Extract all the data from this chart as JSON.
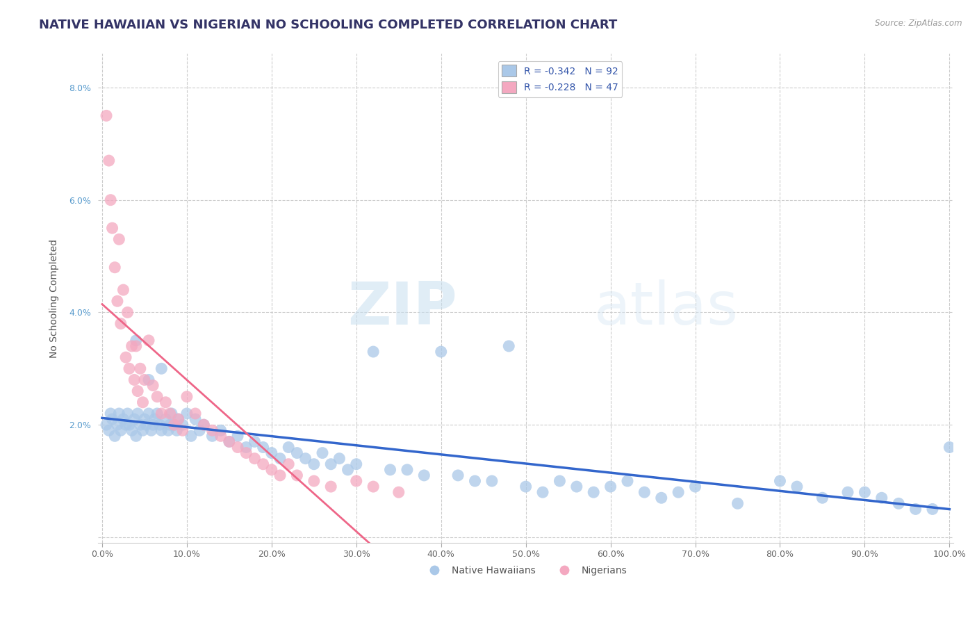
{
  "title": "NATIVE HAWAIIAN VS NIGERIAN NO SCHOOLING COMPLETED CORRELATION CHART",
  "source": "Source: ZipAtlas.com",
  "ylabel": "No Schooling Completed",
  "xlabel": "",
  "watermark_zip": "ZIP",
  "watermark_atlas": "atlas",
  "legend_entries": [
    {
      "label": "R = -0.342   N = 92",
      "color": "#a8c8e8"
    },
    {
      "label": "R = -0.228   N = 47",
      "color": "#f4a8c0"
    }
  ],
  "legend_bottom": [
    {
      "label": "Native Hawaiians",
      "color": "#a8c8e8"
    },
    {
      "label": "Nigerians",
      "color": "#f4a8c0"
    }
  ],
  "xlim": [
    -0.005,
    1.005
  ],
  "ylim": [
    -0.001,
    0.086
  ],
  "xticks": [
    0.0,
    0.1,
    0.2,
    0.3,
    0.4,
    0.5,
    0.6,
    0.7,
    0.8,
    0.9,
    1.0
  ],
  "xtick_labels": [
    "0.0%",
    "10.0%",
    "20.0%",
    "30.0%",
    "40.0%",
    "50.0%",
    "60.0%",
    "70.0%",
    "80.0%",
    "90.0%",
    "100.0%"
  ],
  "yticks": [
    0.0,
    0.02,
    0.04,
    0.06,
    0.08
  ],
  "ytick_labels": [
    "",
    "2.0%",
    "4.0%",
    "6.0%",
    "8.0%"
  ],
  "grid_color": "#cccccc",
  "background_color": "#ffffff",
  "blue_color": "#aac8e8",
  "pink_color": "#f4a8c0",
  "blue_line_color": "#3366cc",
  "pink_line_color": "#ee6688",
  "native_hawaiian_x": [
    0.005,
    0.008,
    0.01,
    0.012,
    0.015,
    0.018,
    0.02,
    0.022,
    0.025,
    0.028,
    0.03,
    0.032,
    0.035,
    0.038,
    0.04,
    0.042,
    0.045,
    0.048,
    0.05,
    0.052,
    0.055,
    0.058,
    0.06,
    0.062,
    0.065,
    0.068,
    0.07,
    0.075,
    0.078,
    0.08,
    0.082,
    0.085,
    0.088,
    0.09,
    0.095,
    0.1,
    0.105,
    0.11,
    0.115,
    0.12,
    0.13,
    0.14,
    0.15,
    0.16,
    0.17,
    0.18,
    0.19,
    0.2,
    0.21,
    0.22,
    0.23,
    0.24,
    0.25,
    0.26,
    0.27,
    0.28,
    0.29,
    0.3,
    0.32,
    0.34,
    0.36,
    0.38,
    0.4,
    0.42,
    0.44,
    0.46,
    0.48,
    0.5,
    0.52,
    0.54,
    0.56,
    0.58,
    0.6,
    0.62,
    0.64,
    0.66,
    0.68,
    0.7,
    0.75,
    0.8,
    0.82,
    0.85,
    0.88,
    0.9,
    0.92,
    0.94,
    0.96,
    0.98,
    1.0,
    0.04,
    0.055,
    0.07
  ],
  "native_hawaiian_y": [
    0.02,
    0.019,
    0.022,
    0.021,
    0.018,
    0.02,
    0.022,
    0.019,
    0.021,
    0.02,
    0.022,
    0.02,
    0.019,
    0.021,
    0.018,
    0.022,
    0.02,
    0.019,
    0.021,
    0.02,
    0.022,
    0.019,
    0.02,
    0.021,
    0.022,
    0.02,
    0.019,
    0.021,
    0.019,
    0.02,
    0.022,
    0.02,
    0.019,
    0.021,
    0.02,
    0.022,
    0.018,
    0.021,
    0.019,
    0.02,
    0.018,
    0.019,
    0.017,
    0.018,
    0.016,
    0.017,
    0.016,
    0.015,
    0.014,
    0.016,
    0.015,
    0.014,
    0.013,
    0.015,
    0.013,
    0.014,
    0.012,
    0.013,
    0.033,
    0.012,
    0.012,
    0.011,
    0.033,
    0.011,
    0.01,
    0.01,
    0.034,
    0.009,
    0.008,
    0.01,
    0.009,
    0.008,
    0.009,
    0.01,
    0.008,
    0.007,
    0.008,
    0.009,
    0.006,
    0.01,
    0.009,
    0.007,
    0.008,
    0.008,
    0.007,
    0.006,
    0.005,
    0.005,
    0.016,
    0.035,
    0.028,
    0.03
  ],
  "nigerian_x": [
    0.005,
    0.008,
    0.01,
    0.012,
    0.015,
    0.018,
    0.02,
    0.022,
    0.025,
    0.028,
    0.03,
    0.032,
    0.035,
    0.038,
    0.04,
    0.042,
    0.045,
    0.048,
    0.05,
    0.055,
    0.06,
    0.065,
    0.07,
    0.075,
    0.08,
    0.085,
    0.09,
    0.095,
    0.1,
    0.11,
    0.12,
    0.13,
    0.14,
    0.15,
    0.16,
    0.17,
    0.18,
    0.19,
    0.2,
    0.21,
    0.22,
    0.23,
    0.25,
    0.27,
    0.3,
    0.32,
    0.35
  ],
  "nigerian_y": [
    0.075,
    0.067,
    0.06,
    0.055,
    0.048,
    0.042,
    0.053,
    0.038,
    0.044,
    0.032,
    0.04,
    0.03,
    0.034,
    0.028,
    0.034,
    0.026,
    0.03,
    0.024,
    0.028,
    0.035,
    0.027,
    0.025,
    0.022,
    0.024,
    0.022,
    0.02,
    0.021,
    0.019,
    0.025,
    0.022,
    0.02,
    0.019,
    0.018,
    0.017,
    0.016,
    0.015,
    0.014,
    0.013,
    0.012,
    0.011,
    0.013,
    0.011,
    0.01,
    0.009,
    0.01,
    0.009,
    0.008
  ],
  "title_fontsize": 13,
  "axis_fontsize": 10,
  "tick_fontsize": 9,
  "legend_fontsize": 10
}
